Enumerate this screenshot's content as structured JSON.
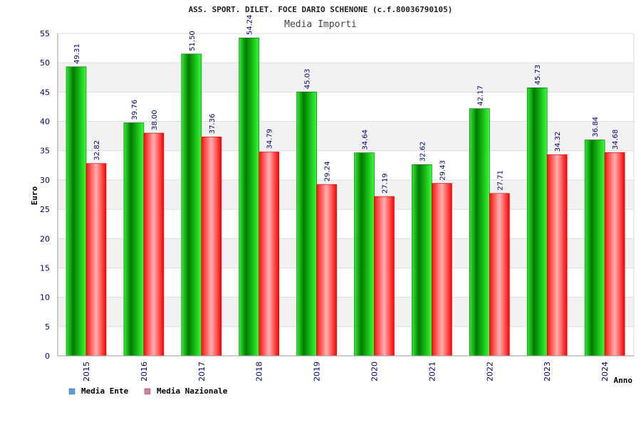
{
  "header": {
    "title": "ASS. SPORT. DILET. FOCE DARIO SCHENONE (c.f.80036790105)",
    "subtitle": "Media Importi"
  },
  "colors": {
    "ente_dark": "#007a00",
    "ente_light": "#33ff33",
    "naz_dark": "#ff0000",
    "naz_light": "#ffb0b0",
    "band": "#f2f2f2",
    "axis_text": "#000080",
    "label_text": "#000080",
    "legend_ente": "#5aa0e0",
    "legend_naz": "#d080a0"
  },
  "chart_data": {
    "type": "bar",
    "title": "Media Importi",
    "xlabel": "Anno",
    "ylabel": "Euro",
    "ylim": [
      0,
      55
    ],
    "yticks": [
      0,
      5,
      10,
      15,
      20,
      25,
      30,
      35,
      40,
      45,
      50,
      55
    ],
    "grid": true,
    "legend_position": "bottom-left",
    "categories": [
      "2015",
      "2016",
      "2017",
      "2018",
      "2019",
      "2020",
      "2021",
      "2022",
      "2023",
      "2024"
    ],
    "series": [
      {
        "name": "Media Ente",
        "values": [
          49.31,
          39.76,
          51.5,
          54.24,
          45.03,
          34.64,
          32.62,
          42.17,
          45.73,
          36.84
        ],
        "labels": [
          "49.31",
          "39.76",
          "51.50",
          "54.24",
          "45.03",
          "34.64",
          "32.62",
          "42.17",
          "45.73",
          "36.84"
        ]
      },
      {
        "name": "Media Nazionale",
        "values": [
          32.82,
          38.0,
          37.36,
          34.79,
          29.24,
          27.19,
          29.43,
          27.71,
          34.32,
          34.68
        ],
        "labels": [
          "32.82",
          "38.00",
          "37.36",
          "34.79",
          "29.24",
          "27.19",
          "29.43",
          "27.71",
          "34.32",
          "34.68"
        ]
      }
    ]
  }
}
